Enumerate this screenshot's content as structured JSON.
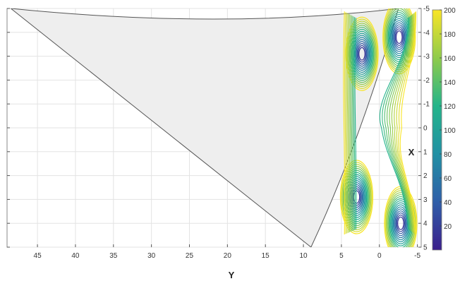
{
  "chart_data": {
    "type": "contour",
    "xlabel": "Y",
    "ylabel": "X",
    "x_axis": {
      "reversed": true,
      "range": [
        49,
        -5.5
      ],
      "ticks": [
        45,
        40,
        35,
        30,
        25,
        20,
        15,
        10,
        5,
        0,
        -5
      ],
      "tick_labels": [
        "45",
        "40",
        "35",
        "30",
        "25",
        "20",
        "15",
        "10",
        "5",
        "0",
        "-5"
      ]
    },
    "y_axis": {
      "position": "right",
      "range": [
        -5,
        5
      ],
      "ticks": [
        -5,
        -4,
        -3,
        -2,
        -1,
        0,
        1,
        2,
        3,
        4,
        5
      ],
      "tick_labels": [
        "-5",
        "-4",
        "-3",
        "-2",
        "-1",
        "0",
        "1",
        "2",
        "3",
        "4",
        "5"
      ]
    },
    "grid": true,
    "colorbar": {
      "ticks": [
        20,
        40,
        60,
        80,
        100,
        120,
        140,
        160,
        180,
        200
      ],
      "tick_labels": [
        "20",
        "40",
        "60",
        "80",
        "100",
        "120",
        "140",
        "160",
        "180",
        "200"
      ],
      "range": [
        0,
        200
      ],
      "colors": [
        "#3b1f8c",
        "#2f5ea8",
        "#2290a4",
        "#24b48a",
        "#8fcb4b",
        "#f9e526"
      ]
    },
    "minima": [
      {
        "y": 2.3,
        "x": -3.1
      },
      {
        "y": -2.6,
        "x": -3.8
      },
      {
        "y": 3.0,
        "x": 2.9
      },
      {
        "y": -2.8,
        "x": 4.0
      }
    ],
    "shaded_region": {
      "fill": "#eeeeee",
      "points": [
        {
          "y": 48.5,
          "x": -5.0
        },
        {
          "y": 9.0,
          "x": 5.0
        },
        {
          "y": -2.5,
          "x": -5.0
        }
      ]
    }
  }
}
